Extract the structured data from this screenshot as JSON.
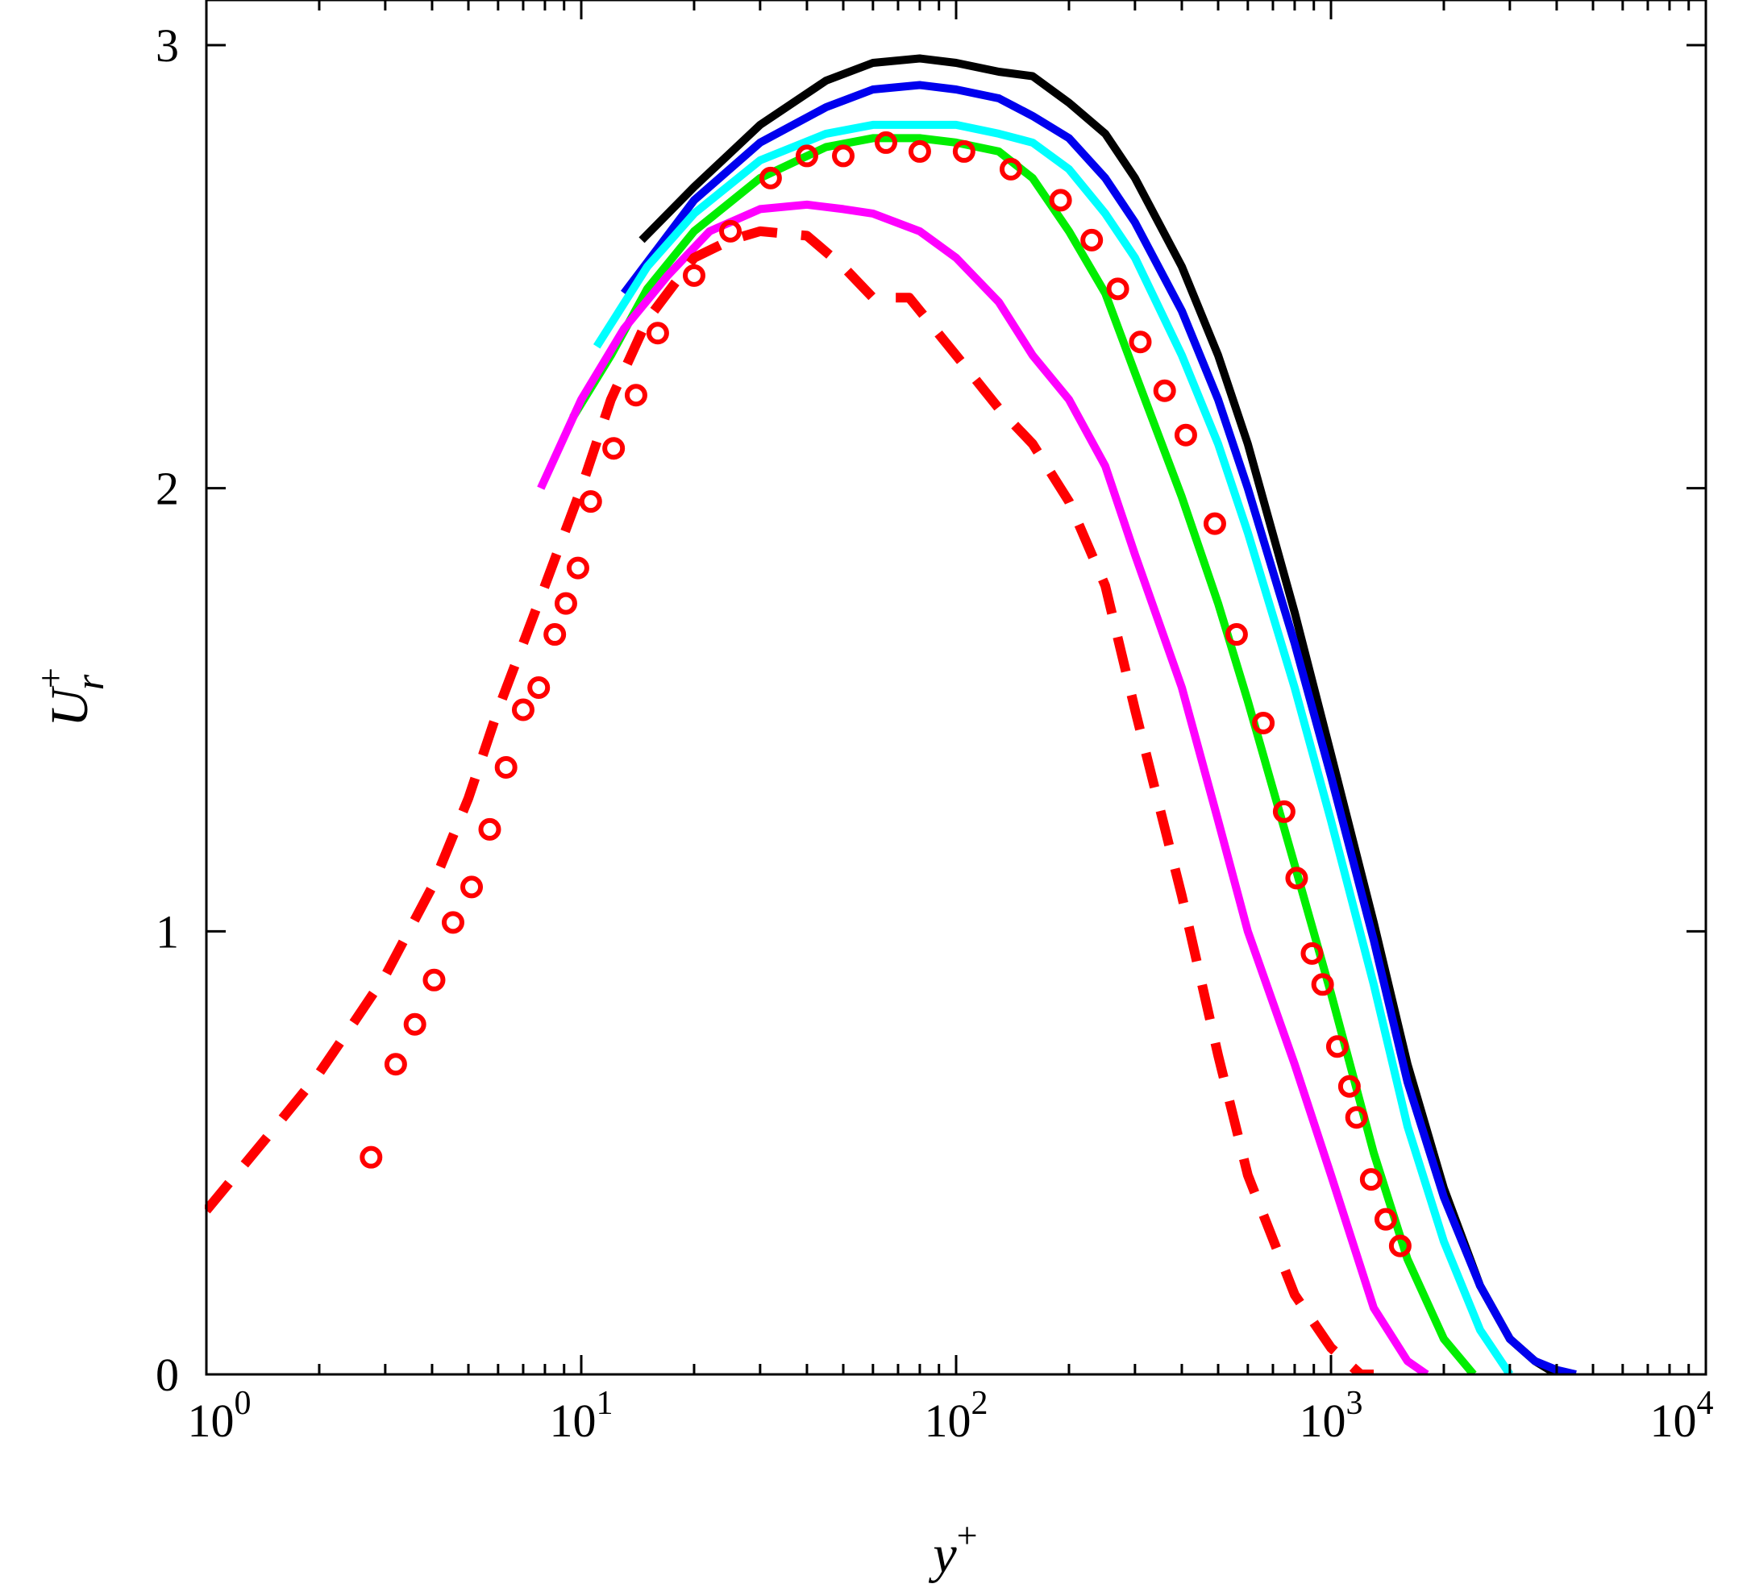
{
  "chart_data": {
    "type": "line",
    "xlabel": {
      "base": "y",
      "sup": "+"
    },
    "ylabel": {
      "base": "U",
      "sub": "r",
      "sup": "+"
    },
    "xscale": "log",
    "xlim": [
      1,
      10000
    ],
    "ylim": [
      0,
      3
    ],
    "grid": false,
    "legend": "none",
    "x_ticks": [
      {
        "base": "10",
        "exp": "0",
        "value": 1
      },
      {
        "base": "10",
        "exp": "1",
        "value": 10
      },
      {
        "base": "10",
        "exp": "2",
        "value": 100
      },
      {
        "base": "10",
        "exp": "3",
        "value": 1000
      },
      {
        "base": "10",
        "exp": "4",
        "value": 10000
      }
    ],
    "y_ticks": [
      "0",
      "1",
      "2",
      "3"
    ],
    "series": [
      {
        "color": "#000000",
        "style": "solid",
        "x": [
          14.5,
          20,
          30,
          45,
          60,
          80,
          100,
          130,
          160,
          200,
          250,
          300,
          400,
          500,
          600,
          800,
          1000,
          1300,
          1600,
          2000,
          2500,
          3000,
          3500,
          4000
        ],
        "y": [
          2.56,
          2.68,
          2.82,
          2.92,
          2.96,
          2.97,
          2.96,
          2.94,
          2.93,
          2.87,
          2.8,
          2.7,
          2.5,
          2.3,
          2.1,
          1.72,
          1.4,
          1.02,
          0.7,
          0.42,
          0.2,
          0.08,
          0.03,
          0.0
        ]
      },
      {
        "color": "#0000ee",
        "style": "solid",
        "x": [
          13,
          20,
          30,
          45,
          60,
          80,
          100,
          130,
          160,
          200,
          250,
          300,
          400,
          500,
          600,
          800,
          1000,
          1300,
          1600,
          2000,
          2500,
          3000,
          3500,
          4000,
          4500
        ],
        "y": [
          2.44,
          2.65,
          2.78,
          2.86,
          2.9,
          2.91,
          2.9,
          2.88,
          2.84,
          2.79,
          2.7,
          2.6,
          2.4,
          2.2,
          2.0,
          1.65,
          1.35,
          0.98,
          0.66,
          0.4,
          0.2,
          0.08,
          0.03,
          0.01,
          0.0
        ]
      },
      {
        "color": "#00ffff",
        "style": "solid",
        "x": [
          11,
          15,
          20,
          30,
          45,
          60,
          80,
          100,
          130,
          160,
          200,
          250,
          300,
          400,
          500,
          600,
          800,
          1000,
          1300,
          1600,
          2000,
          2500,
          3000
        ],
        "y": [
          2.32,
          2.5,
          2.62,
          2.74,
          2.8,
          2.82,
          2.82,
          2.82,
          2.8,
          2.78,
          2.72,
          2.62,
          2.52,
          2.3,
          2.1,
          1.9,
          1.55,
          1.25,
          0.88,
          0.56,
          0.3,
          0.1,
          0.0
        ]
      },
      {
        "color": "#00ee00",
        "style": "solid",
        "x": [
          9.5,
          12,
          15,
          20,
          30,
          45,
          60,
          80,
          100,
          130,
          160,
          200,
          250,
          300,
          400,
          500,
          600,
          800,
          1000,
          1300,
          1600,
          2000,
          2400
        ],
        "y": [
          2.16,
          2.3,
          2.45,
          2.58,
          2.7,
          2.77,
          2.79,
          2.79,
          2.78,
          2.76,
          2.7,
          2.58,
          2.44,
          2.26,
          1.98,
          1.74,
          1.52,
          1.15,
          0.86,
          0.5,
          0.26,
          0.08,
          0.0
        ]
      },
      {
        "color": "#ff00ff",
        "style": "solid",
        "x": [
          7.8,
          10,
          13,
          17,
          22,
          30,
          40,
          50,
          60,
          80,
          100,
          130,
          160,
          200,
          250,
          300,
          400,
          500,
          600,
          800,
          1000,
          1300,
          1600,
          1800
        ],
        "y": [
          2.0,
          2.2,
          2.36,
          2.48,
          2.58,
          2.63,
          2.64,
          2.63,
          2.62,
          2.58,
          2.52,
          2.42,
          2.3,
          2.2,
          2.05,
          1.85,
          1.55,
          1.25,
          1.0,
          0.7,
          0.45,
          0.15,
          0.03,
          0.0
        ]
      },
      {
        "color": "#ff0000",
        "style": "dashed",
        "x": [
          1,
          1.5,
          2,
          2.5,
          3,
          4,
          5,
          6,
          7,
          8,
          10,
          12,
          15,
          20,
          25,
          30,
          40,
          50,
          60,
          75,
          100,
          130,
          160,
          200,
          250,
          300,
          400,
          500,
          600,
          800,
          1000,
          1200,
          1300
        ],
        "y": [
          0.37,
          0.55,
          0.68,
          0.8,
          0.9,
          1.1,
          1.3,
          1.5,
          1.65,
          1.78,
          2.0,
          2.2,
          2.38,
          2.52,
          2.56,
          2.58,
          2.57,
          2.5,
          2.43,
          2.43,
          2.3,
          2.18,
          2.1,
          1.97,
          1.78,
          1.5,
          1.08,
          0.72,
          0.45,
          0.18,
          0.06,
          0.0,
          0.0
        ]
      },
      {
        "color": "#ff0000",
        "style": "markers",
        "x": [
          2.75,
          3.2,
          3.6,
          4.05,
          4.55,
          5.1,
          5.7,
          6.3,
          7.0,
          7.7,
          8.5,
          9.1,
          9.8,
          10.6,
          12.2,
          14.0,
          16.0,
          20.0,
          25.0,
          32.0,
          40.0,
          50.0,
          65.0,
          80.0,
          105.0,
          140.0,
          190.0,
          230.0,
          270.0,
          310.0,
          360.0,
          410.0,
          490.0,
          560.0,
          660.0,
          750.0,
          810.0,
          890.0,
          950.0,
          1040.0,
          1120.0,
          1170.0,
          1280.0,
          1400.0,
          1530.0
        ],
        "y": [
          0.49,
          0.7,
          0.79,
          0.89,
          1.02,
          1.1,
          1.23,
          1.37,
          1.5,
          1.55,
          1.67,
          1.74,
          1.82,
          1.97,
          2.09,
          2.21,
          2.35,
          2.48,
          2.58,
          2.7,
          2.75,
          2.75,
          2.78,
          2.76,
          2.76,
          2.72,
          2.65,
          2.56,
          2.45,
          2.33,
          2.22,
          2.12,
          1.92,
          1.67,
          1.47,
          1.27,
          1.12,
          0.95,
          0.88,
          0.74,
          0.65,
          0.58,
          0.44,
          0.35,
          0.29
        ]
      }
    ]
  }
}
